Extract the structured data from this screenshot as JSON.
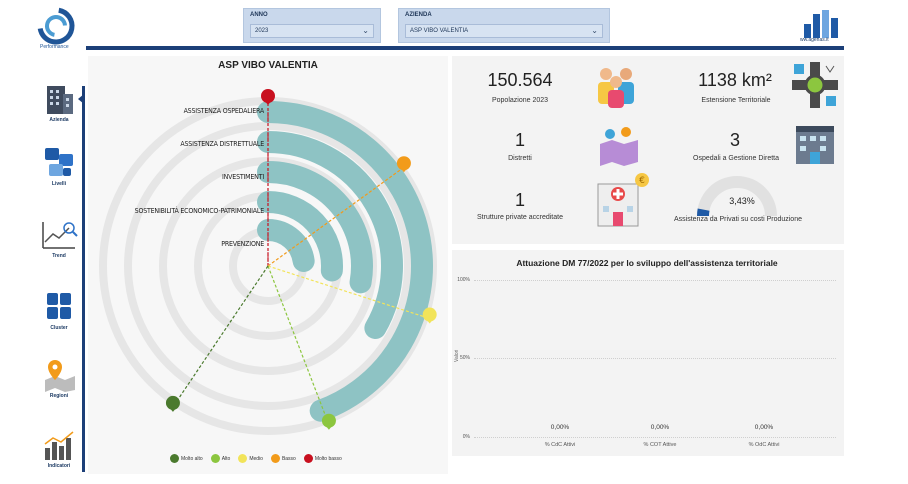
{
  "brand": {
    "name": "Performance"
  },
  "agenas": {
    "label": "ww.agenas.it"
  },
  "nav": {
    "items": [
      {
        "label": "Azienda",
        "icon": "building-icon"
      },
      {
        "label": "Livelli",
        "icon": "layers-icon"
      },
      {
        "label": "Trend",
        "icon": "trend-chart-icon"
      },
      {
        "label": "Cluster",
        "icon": "grid-icon"
      },
      {
        "label": "Regioni",
        "icon": "map-pin-icon"
      },
      {
        "label": "Indicatori",
        "icon": "bar-chart-icon"
      }
    ]
  },
  "filters": {
    "anno": {
      "label": "ANNO",
      "value": "2023"
    },
    "azienda": {
      "label": "AZIENDA",
      "value": "ASP VIBO VALENTIA"
    }
  },
  "radial": {
    "title": "ASP VIBO VALENTIA",
    "categories": [
      "ASSISTENZA OSPEDALIERA",
      "ASSISTENZA DISTRETTUALE",
      "INVESTIMENTI",
      "SOSTENIBILITÀ ECONOMICO-PATRIMONIALE",
      "PREVENZIONE"
    ],
    "legend": [
      {
        "label": "Molto alto",
        "color": "#4b7a2e"
      },
      {
        "label": "Alto",
        "color": "#8cc63f"
      },
      {
        "label": "Medio",
        "color": "#f2e45a"
      },
      {
        "label": "Basso",
        "color": "#f29b1a"
      },
      {
        "label": "Molto basso",
        "color": "#c8101f"
      }
    ],
    "bar_color": "#8ec3c4"
  },
  "kpis": {
    "popolazione": {
      "value": "150.564",
      "label": "Popolazione 2023"
    },
    "estensione": {
      "value": "1138 km²",
      "label": "Estensione Territoriale"
    },
    "distretti": {
      "value": "1",
      "label": "Distretti"
    },
    "ospedali": {
      "value": "3",
      "label": "Ospedali a Gestione Diretta"
    },
    "strutture": {
      "value": "1",
      "label": "Strutture private accreditate"
    },
    "assistenza": {
      "value": "3,43%",
      "label": "Assistenza da Privati su costi Produzione",
      "fraction": 0.0343
    }
  },
  "chart_data": {
    "type": "bar",
    "title": "Attuazione DM 77/2022 per lo sviluppo dell'assistenza territoriale",
    "ylabel": "Valori",
    "ylim": [
      0,
      100
    ],
    "yticks": [
      "100%",
      "50%",
      "0%"
    ],
    "categories": [
      "% CdC Attivi",
      "% COT Attive",
      "% OdC Attivi"
    ],
    "values": [
      0,
      0,
      0
    ],
    "value_labels": [
      "0,00%",
      "0,00%",
      "0,00%"
    ]
  }
}
